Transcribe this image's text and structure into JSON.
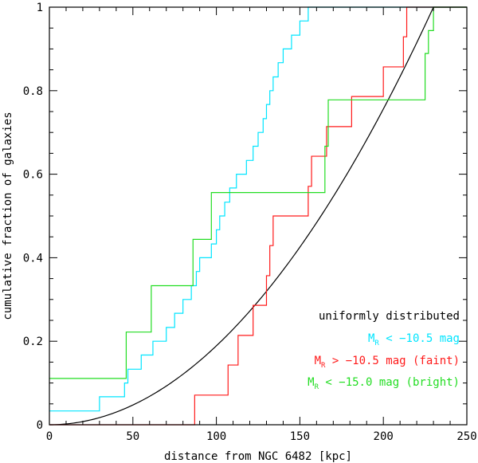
{
  "chart_data": {
    "type": "line",
    "title": "",
    "xlabel": "distance from NGC 6482 [kpc]",
    "ylabel": "cumulative fraction of galaxies",
    "xlim": [
      0,
      250
    ],
    "ylim": [
      0,
      1
    ],
    "x_ticks": [
      0,
      50,
      100,
      150,
      200,
      250
    ],
    "x_tick_labels": [
      "0",
      "50",
      "100",
      "150",
      "200",
      "250"
    ],
    "y_ticks": [
      0,
      0.2,
      0.4,
      0.6,
      0.8,
      1
    ],
    "y_tick_labels": [
      "0",
      "0.2",
      "0.4",
      "0.6",
      "0.8",
      "1"
    ],
    "legend_position": "bottom-right",
    "series": [
      {
        "name": "uniformly distributed",
        "label_main": "uniformly distributed",
        "label_sub": "",
        "label_rest": "",
        "color": "#000000",
        "style": "curve",
        "function": "(x/230)^2",
        "x_max": 230
      },
      {
        "name": "M_R < -10.5 mag",
        "label_main": "M",
        "label_sub": "R",
        "label_rest": " < −10.5 mag",
        "color": "#00e5ff",
        "style": "step",
        "x": [
          0,
          30,
          45,
          47,
          55,
          62,
          70,
          75,
          80,
          85,
          88,
          90,
          97,
          100,
          102,
          105,
          108,
          112,
          118,
          122,
          125,
          128,
          130,
          132,
          134,
          137,
          140,
          145,
          150,
          155,
          160,
          165,
          168,
          170,
          173,
          180,
          200,
          210,
          215,
          220,
          225,
          228,
          230,
          250
        ],
        "y": [
          0.033,
          0.067,
          0.1,
          0.133,
          0.167,
          0.2,
          0.233,
          0.267,
          0.3,
          0.333,
          0.367,
          0.4,
          0.433,
          0.467,
          0.5,
          0.533,
          0.567,
          0.6,
          0.633,
          0.667,
          0.7,
          0.733,
          0.767,
          0.8,
          0.833,
          0.867,
          0.9,
          0.933,
          0.967,
          1.0,
          1.0,
          1.0,
          1.0,
          1.0,
          1.0,
          1.0,
          1.0,
          1.0,
          1.0,
          1.0,
          1.0,
          1.0,
          1.0,
          1.0
        ]
      },
      {
        "name": "M_R > -10.5 mag (faint)",
        "label_main": "M",
        "label_sub": "R",
        "label_rest": " > −10.5 mag (faint)",
        "color": "#ff1a1a",
        "style": "step",
        "x": [
          0,
          87,
          107,
          113,
          122,
          130,
          132,
          134,
          155,
          157,
          160,
          166,
          181,
          200,
          212,
          214,
          218,
          250
        ],
        "y": [
          0,
          0.071,
          0.143,
          0.214,
          0.286,
          0.357,
          0.429,
          0.5,
          0.571,
          0.643,
          0.643,
          0.714,
          0.786,
          0.857,
          0.929,
          1.0,
          1.0,
          1.0
        ]
      },
      {
        "name": "M_R < -15.0 mag (bright)",
        "label_main": "M",
        "label_sub": "R",
        "label_rest": " < −15.0 mag (bright)",
        "color": "#22dd22",
        "style": "step",
        "x": [
          0,
          46,
          61,
          86,
          97,
          165,
          167,
          225,
          227,
          230,
          250
        ],
        "y": [
          0.111,
          0.222,
          0.333,
          0.444,
          0.556,
          0.667,
          0.778,
          0.889,
          0.944,
          1.0,
          1.0
        ]
      }
    ]
  }
}
